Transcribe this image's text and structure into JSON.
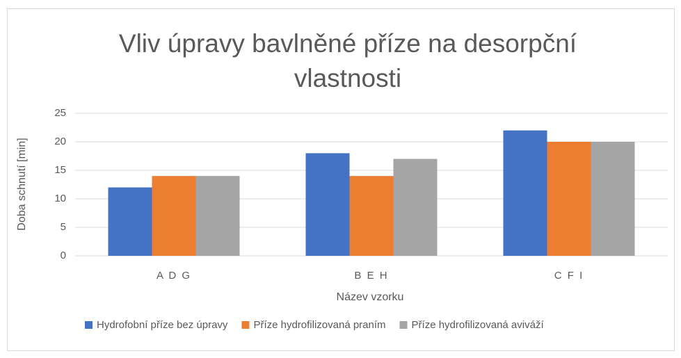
{
  "chart_data": {
    "type": "bar",
    "title": "Vliv úpravy bavlněné příze na desorpční vlastnosti",
    "x_label": "Název vzorku",
    "y_label": "Doba schnutí [min]",
    "categories": [
      "A D G",
      "B E H",
      "C F I"
    ],
    "series": [
      {
        "name": "Hydrofobní příze bez úpravy",
        "color": "#4472c4",
        "values": [
          12,
          18,
          22
        ]
      },
      {
        "name": "Příze hydrofilizovaná praním",
        "color": "#ed7d31",
        "values": [
          14,
          14,
          20
        ]
      },
      {
        "name": "Příze hydrofilizovaná aviváží",
        "color": "#a5a5a5",
        "values": [
          14,
          17,
          20
        ]
      }
    ],
    "ylim": [
      0,
      25
    ],
    "yticks": [
      0,
      5,
      10,
      15,
      20,
      25
    ],
    "grid": true,
    "legend": "bottom"
  }
}
